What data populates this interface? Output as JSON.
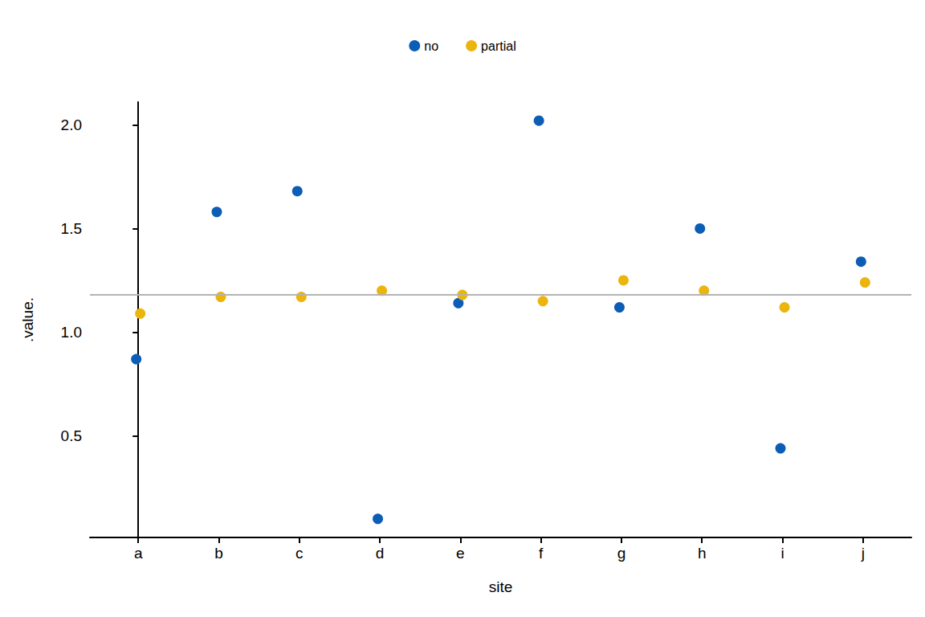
{
  "chart_data": {
    "type": "scatter",
    "x_label": "site",
    "y_label": ".value.",
    "categories": [
      "a",
      "b",
      "c",
      "d",
      "e",
      "f",
      "g",
      "h",
      "i",
      "j"
    ],
    "series": [
      {
        "name": "no",
        "color": "#0C5DB5",
        "values": [
          0.87,
          1.58,
          1.68,
          0.1,
          1.14,
          2.02,
          1.12,
          1.5,
          0.44,
          1.34
        ]
      },
      {
        "name": "partial",
        "color": "#EBB50E",
        "values": [
          1.09,
          1.17,
          1.17,
          1.2,
          1.18,
          1.15,
          1.25,
          1.2,
          1.12,
          1.24
        ]
      }
    ],
    "hline": 1.18,
    "ylim": [
      0.01,
      2.11
    ],
    "yticks": [
      0.5,
      {
        "value": 1,
        "label": "1.0"
      },
      1.5,
      {
        "value": 2,
        "label": "2.0"
      }
    ],
    "legend": "top",
    "grid": false
  }
}
